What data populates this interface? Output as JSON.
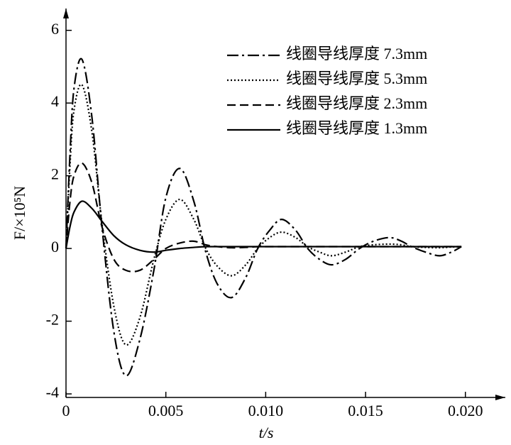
{
  "chart_data": {
    "type": "line",
    "xlabel": "t/s",
    "ylabel": "F/×10⁵N",
    "x": [
      0,
      0.0002,
      0.0004,
      0.0008,
      0.0013,
      0.0018,
      0.0024,
      0.003,
      0.0037,
      0.0044,
      0.005,
      0.0057,
      0.0064,
      0.007,
      0.0076,
      0.0083,
      0.009,
      0.0096,
      0.0102,
      0.0108,
      0.0115,
      0.0121,
      0.0127,
      0.0133,
      0.014,
      0.0147,
      0.0154,
      0.0162,
      0.0168,
      0.0173,
      0.018,
      0.0187,
      0.0193,
      0.0198
    ],
    "series": [
      {
        "name": "线圈导线厚度 7.3mm",
        "color": "#000000",
        "dash": "dashdot",
        "values": [
          0,
          2.6,
          4.4,
          5.2,
          3.6,
          0.6,
          -2.3,
          -3.5,
          -2.5,
          -0.6,
          1.4,
          2.2,
          1.3,
          -0.1,
          -1.0,
          -1.35,
          -0.8,
          0,
          0.5,
          0.8,
          0.5,
          0,
          -0.3,
          -0.45,
          -0.3,
          0,
          0.2,
          0.3,
          0.2,
          0.05,
          -0.1,
          -0.2,
          -0.1,
          0.05
        ]
      },
      {
        "name": "线圈导线厚度 5.3mm",
        "color": "#000000",
        "dash": "dotted",
        "values": [
          0,
          2.3,
          3.8,
          4.5,
          3.2,
          0.7,
          -1.6,
          -2.65,
          -1.9,
          -0.3,
          0.8,
          1.35,
          0.8,
          0,
          -0.5,
          -0.75,
          -0.45,
          0,
          0.3,
          0.45,
          0.3,
          0.05,
          -0.1,
          -0.2,
          -0.1,
          0.05,
          0.1,
          0.12,
          0.1,
          0.05,
          0.03,
          0.02,
          0.04,
          0.05
        ]
      },
      {
        "name": "线圈导线厚度 2.3mm",
        "color": "#000000",
        "dash": "dashed",
        "values": [
          0,
          1.3,
          2.0,
          2.35,
          1.8,
          0.6,
          -0.3,
          -0.6,
          -0.6,
          -0.3,
          0,
          0.15,
          0.2,
          0.1,
          0.05,
          0.02,
          0.03,
          0.05,
          0.05,
          0.05,
          0.05,
          0.05,
          0.05,
          0.05,
          0.05,
          0.05,
          0.05,
          0.05,
          0.05,
          0.05,
          0.05,
          0.05,
          0.05,
          0.05
        ]
      },
      {
        "name": "线圈导线厚度 1.3mm",
        "color": "#000000",
        "dash": "solid",
        "values": [
          0,
          0.6,
          1.0,
          1.3,
          1.1,
          0.75,
          0.35,
          0.1,
          -0.05,
          -0.1,
          -0.05,
          0,
          0.03,
          0.05,
          0.05,
          0.05,
          0.05,
          0.05,
          0.05,
          0.05,
          0.05,
          0.05,
          0.05,
          0.05,
          0.05,
          0.05,
          0.05,
          0.05,
          0.05,
          0.05,
          0.05,
          0.05,
          0.05,
          0.05
        ]
      }
    ],
    "xlim": [
      0,
      0.022
    ],
    "ylim": [
      -4,
      6.6
    ],
    "xticks": [
      0,
      0.005,
      {
        "value": 0.01,
        "label": "0.010"
      },
      0.015,
      {
        "value": 0.02,
        "label": "0.020"
      }
    ],
    "yticks": [
      -4,
      -2,
      0,
      2,
      4,
      6
    ],
    "grid": false,
    "legend": "top-right"
  }
}
